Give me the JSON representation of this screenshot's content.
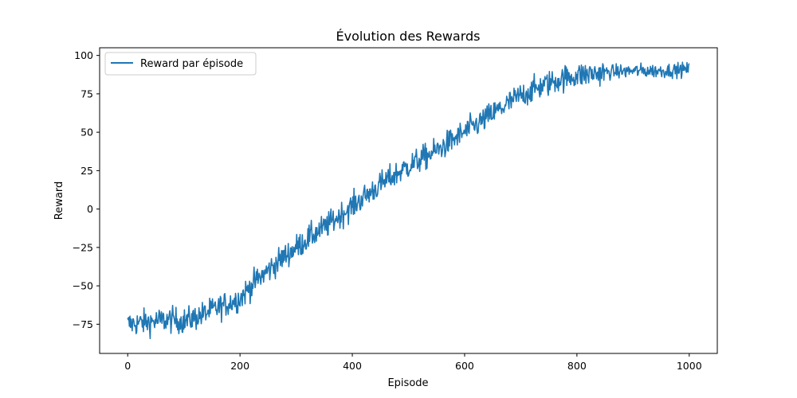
{
  "chart_data": {
    "type": "line",
    "title": "Évolution des Rewards",
    "xlabel": "Episode",
    "ylabel": "Reward",
    "xlim": [
      -50,
      1050
    ],
    "ylim": [
      -94,
      105
    ],
    "xticks": [
      0,
      200,
      400,
      600,
      800,
      1000
    ],
    "xtick_labels": [
      "0",
      "200",
      "400",
      "600",
      "800",
      "1000"
    ],
    "yticks": [
      -75,
      -50,
      -25,
      0,
      25,
      50,
      75,
      100
    ],
    "ytick_labels": [
      "−75",
      "−50",
      "−25",
      "0",
      "25",
      "50",
      "75",
      "100"
    ],
    "grid": false,
    "legend_position": "top-left",
    "series": [
      {
        "name": "Reward par épisode",
        "color": "#1f77b4",
        "x": [
          0,
          25,
          50,
          75,
          100,
          125,
          150,
          175,
          200,
          225,
          250,
          275,
          300,
          325,
          350,
          375,
          400,
          425,
          450,
          475,
          500,
          525,
          550,
          575,
          600,
          625,
          650,
          675,
          700,
          725,
          750,
          775,
          800,
          825,
          850,
          875,
          900,
          925,
          950,
          975,
          1000
        ],
        "y": [
          -75,
          -74,
          -73,
          -72,
          -73,
          -70,
          -66,
          -62,
          -58,
          -48,
          -40,
          -32,
          -25,
          -18,
          -12,
          -5,
          2,
          9,
          16,
          22,
          28,
          33,
          38,
          44,
          50,
          56,
          62,
          68,
          74,
          78,
          82,
          85,
          87,
          88,
          89,
          89.5,
          90,
          90,
          90,
          90.5,
          91
        ],
        "noise": 7,
        "points": 1001
      }
    ]
  }
}
